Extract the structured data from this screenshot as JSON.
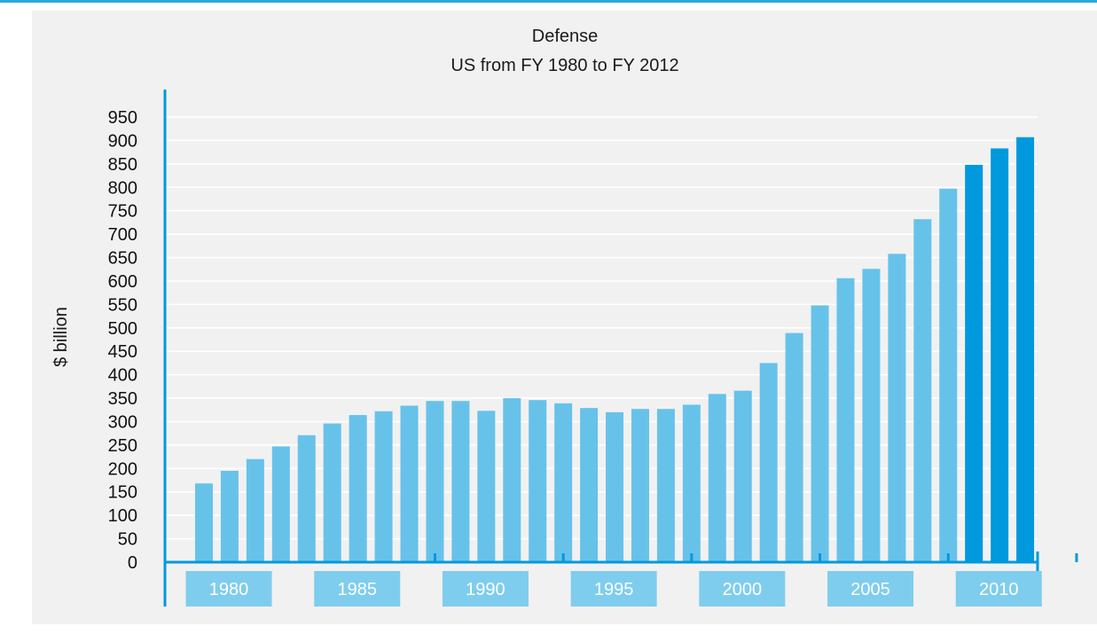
{
  "chart_data": {
    "type": "bar",
    "title": "Defense",
    "subtitle": "US from FY 1980 to FY 2012",
    "xlabel": "",
    "ylabel": "$ billion",
    "ylim": [
      0,
      950
    ],
    "y_ticks": [
      0,
      50,
      100,
      150,
      200,
      250,
      300,
      350,
      400,
      450,
      500,
      550,
      600,
      650,
      700,
      750,
      800,
      850,
      900,
      950
    ],
    "x_tick_labels": [
      "1980",
      "1985",
      "1990",
      "1995",
      "2000",
      "2005",
      "2010"
    ],
    "grid": true,
    "legend": "none",
    "categories": [
      1980,
      1981,
      1982,
      1983,
      1984,
      1985,
      1986,
      1987,
      1988,
      1989,
      1990,
      1991,
      1992,
      1993,
      1994,
      1995,
      1996,
      1997,
      1998,
      1999,
      2000,
      2001,
      2002,
      2003,
      2004,
      2005,
      2006,
      2007,
      2008,
      2009,
      2010,
      2011,
      2012
    ],
    "values": [
      168,
      195,
      220,
      247,
      271,
      296,
      314,
      322,
      334,
      344,
      344,
      323,
      350,
      346,
      339,
      329,
      320,
      327,
      327,
      336,
      359,
      366,
      425,
      489,
      548,
      606,
      626,
      658,
      732,
      797,
      848,
      883,
      907
    ],
    "colors": {
      "actual": "#67c2ea",
      "estimate": "#0099dd",
      "axis": "#0099dd",
      "label_box": "#7fcdee",
      "grid": "#ffffff"
    },
    "estimate_start_index": 30
  }
}
